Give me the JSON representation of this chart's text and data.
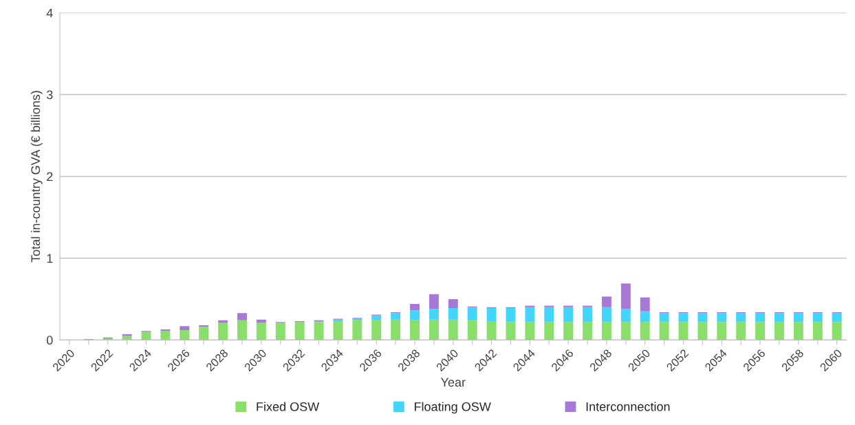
{
  "chart_data": {
    "type": "bar",
    "stacked": true,
    "xlabel": "Year",
    "ylabel": "Total in-country GVA (€ billions)",
    "categories": [
      "2020",
      null,
      "2022",
      null,
      "2024",
      null,
      "2026",
      null,
      "2028",
      null,
      "2030",
      null,
      "2032",
      null,
      "2034",
      null,
      "2036",
      null,
      "2038",
      null,
      "2040",
      null,
      "2042",
      null,
      "2044",
      null,
      "2046",
      null,
      "2048",
      null,
      "2050",
      null,
      "2052",
      null,
      "2054",
      null,
      "2056",
      null,
      "2058",
      null,
      "2060"
    ],
    "series": [
      {
        "name": "Fixed OSW",
        "color": "#8ade6a",
        "values": [
          0,
          0,
          0.02,
          0.05,
          0.1,
          0.11,
          0.12,
          0.16,
          0.21,
          0.24,
          0.21,
          0.21,
          0.22,
          0.22,
          0.23,
          0.24,
          0.24,
          0.25,
          0.24,
          0.25,
          0.25,
          0.24,
          0.23,
          0.22,
          0.22,
          0.22,
          0.22,
          0.22,
          0.22,
          0.22,
          0.22,
          0.22,
          0.22,
          0.22,
          0.22,
          0.22,
          0.22,
          0.22,
          0.22,
          0.22,
          0.22
        ]
      },
      {
        "name": "Floating OSW",
        "color": "#41d6fa",
        "values": [
          0,
          0,
          0,
          0,
          0,
          0,
          0,
          0,
          0,
          0,
          0,
          0,
          0,
          0.01,
          0.02,
          0.02,
          0.06,
          0.08,
          0.12,
          0.13,
          0.14,
          0.16,
          0.16,
          0.17,
          0.18,
          0.18,
          0.18,
          0.18,
          0.18,
          0.16,
          0.13,
          0.11,
          0.11,
          0.11,
          0.11,
          0.11,
          0.11,
          0.11,
          0.11,
          0.11,
          0.11
        ]
      },
      {
        "name": "Interconnection",
        "color": "#a778d6",
        "values": [
          0,
          0.01,
          0.01,
          0.02,
          0.01,
          0.02,
          0.05,
          0.02,
          0.03,
          0.09,
          0.04,
          0.01,
          0.01,
          0.01,
          0.01,
          0.01,
          0.01,
          0.01,
          0.08,
          0.18,
          0.11,
          0.01,
          0.01,
          0.01,
          0.02,
          0.02,
          0.02,
          0.02,
          0.13,
          0.31,
          0.17,
          0.01,
          0.01,
          0.01,
          0.01,
          0.01,
          0.01,
          0.01,
          0.01,
          0.01,
          0.01
        ]
      }
    ],
    "ylim": [
      0,
      4
    ],
    "yticks": [
      0,
      1,
      2,
      3,
      4
    ],
    "grid": "y",
    "legend": "bottom"
  }
}
